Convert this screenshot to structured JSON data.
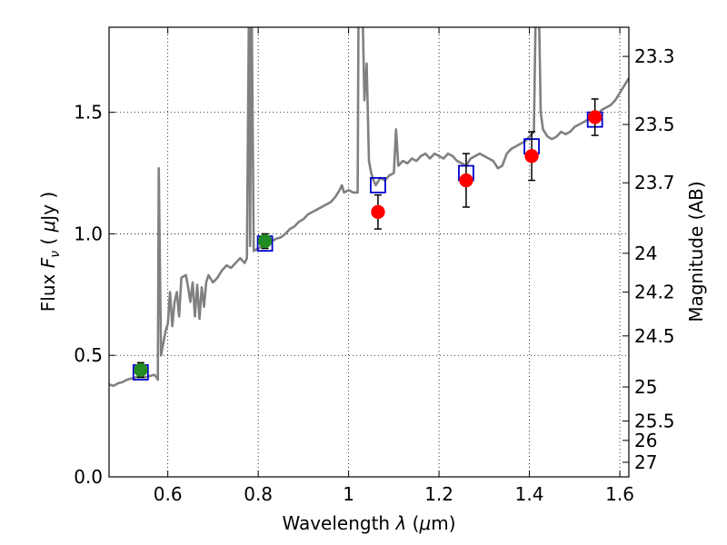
{
  "chart_data": {
    "type": "scatter",
    "title": "",
    "xlabel": "Wavelength  λ (μm)",
    "ylabel": "Flux  F_ν  ( μJy )",
    "y2label": "Magnitude (AB)",
    "xlim": [
      0.47,
      1.62
    ],
    "ylim": [
      0.0,
      1.85
    ],
    "grid": true,
    "grid_style": "dotted",
    "x_ticks": [
      {
        "value": 0.6,
        "label": "0.6"
      },
      {
        "value": 0.8,
        "label": "0.8"
      },
      {
        "value": 1.0,
        "label": "1"
      },
      {
        "value": 1.2,
        "label": "1.2"
      },
      {
        "value": 1.4,
        "label": "1.4"
      },
      {
        "value": 1.6,
        "label": "1.6"
      }
    ],
    "y_ticks": [
      {
        "value": 0.0,
        "label": "0.0"
      },
      {
        "value": 0.5,
        "label": "0.5"
      },
      {
        "value": 1.0,
        "label": "1.0"
      },
      {
        "value": 1.5,
        "label": "1.5"
      }
    ],
    "y2_ticks": [
      {
        "label": "23.3",
        "flux": 1.73
      },
      {
        "label": "23.5",
        "flux": 1.45
      },
      {
        "label": "23.7",
        "flux": 1.21
      },
      {
        "label": "24",
        "flux": 0.92
      },
      {
        "label": "24.2",
        "flux": 0.76
      },
      {
        "label": "24.5",
        "flux": 0.58
      },
      {
        "label": "25",
        "flux": 0.37
      },
      {
        "label": "25.5",
        "flux": 0.23
      },
      {
        "label": "26",
        "flux": 0.15
      },
      {
        "label": "27",
        "flux": 0.06
      }
    ],
    "series": [
      {
        "kind": "spectrum",
        "color": "#808080",
        "points": [
          [
            0.47,
            0.38
          ],
          [
            0.48,
            0.375
          ],
          [
            0.49,
            0.385
          ],
          [
            0.5,
            0.39
          ],
          [
            0.51,
            0.4
          ],
          [
            0.52,
            0.405
          ],
          [
            0.53,
            0.41
          ],
          [
            0.54,
            0.41
          ],
          [
            0.55,
            0.41
          ],
          [
            0.56,
            0.415
          ],
          [
            0.57,
            0.42
          ],
          [
            0.575,
            0.41
          ],
          [
            0.578,
            0.4
          ],
          [
            0.58,
            1.27
          ],
          [
            0.585,
            0.5
          ],
          [
            0.59,
            0.55
          ],
          [
            0.595,
            0.6
          ],
          [
            0.6,
            0.63
          ],
          [
            0.605,
            0.76
          ],
          [
            0.61,
            0.62
          ],
          [
            0.615,
            0.72
          ],
          [
            0.62,
            0.76
          ],
          [
            0.625,
            0.66
          ],
          [
            0.63,
            0.82
          ],
          [
            0.64,
            0.83
          ],
          [
            0.645,
            0.78
          ],
          [
            0.65,
            0.72
          ],
          [
            0.655,
            0.8
          ],
          [
            0.66,
            0.66
          ],
          [
            0.665,
            0.79
          ],
          [
            0.67,
            0.65
          ],
          [
            0.675,
            0.78
          ],
          [
            0.68,
            0.7
          ],
          [
            0.685,
            0.8
          ],
          [
            0.69,
            0.83
          ],
          [
            0.7,
            0.8
          ],
          [
            0.705,
            0.81
          ],
          [
            0.71,
            0.82
          ],
          [
            0.72,
            0.85
          ],
          [
            0.73,
            0.87
          ],
          [
            0.74,
            0.86
          ],
          [
            0.75,
            0.88
          ],
          [
            0.76,
            0.9
          ],
          [
            0.77,
            0.88
          ],
          [
            0.775,
            0.9
          ],
          [
            0.78,
            2.05
          ],
          [
            0.782,
            0.95
          ],
          [
            0.785,
            2.05
          ],
          [
            0.79,
            0.93
          ],
          [
            0.8,
            0.94
          ],
          [
            0.81,
            0.95
          ],
          [
            0.82,
            0.96
          ],
          [
            0.83,
            0.97
          ],
          [
            0.84,
            0.98
          ],
          [
            0.85,
            0.985
          ],
          [
            0.86,
            1.0
          ],
          [
            0.87,
            1.02
          ],
          [
            0.88,
            1.03
          ],
          [
            0.89,
            1.05
          ],
          [
            0.9,
            1.06
          ],
          [
            0.91,
            1.08
          ],
          [
            0.92,
            1.09
          ],
          [
            0.93,
            1.1
          ],
          [
            0.94,
            1.11
          ],
          [
            0.95,
            1.12
          ],
          [
            0.96,
            1.13
          ],
          [
            0.97,
            1.15
          ],
          [
            0.98,
            1.18
          ],
          [
            0.985,
            1.2
          ],
          [
            0.99,
            1.17
          ],
          [
            1.0,
            1.18
          ],
          [
            1.01,
            1.17
          ],
          [
            1.02,
            1.17
          ],
          [
            1.022,
            2.0
          ],
          [
            1.03,
            2.0
          ],
          [
            1.035,
            1.55
          ],
          [
            1.04,
            1.7
          ],
          [
            1.045,
            1.3
          ],
          [
            1.05,
            1.25
          ],
          [
            1.055,
            1.22
          ],
          [
            1.06,
            1.2
          ],
          [
            1.07,
            1.23
          ],
          [
            1.08,
            1.22
          ],
          [
            1.09,
            1.24
          ],
          [
            1.1,
            1.25
          ],
          [
            1.105,
            1.43
          ],
          [
            1.11,
            1.28
          ],
          [
            1.12,
            1.3
          ],
          [
            1.13,
            1.29
          ],
          [
            1.14,
            1.31
          ],
          [
            1.15,
            1.3
          ],
          [
            1.16,
            1.32
          ],
          [
            1.17,
            1.33
          ],
          [
            1.18,
            1.31
          ],
          [
            1.19,
            1.33
          ],
          [
            1.2,
            1.32
          ],
          [
            1.21,
            1.31
          ],
          [
            1.22,
            1.33
          ],
          [
            1.23,
            1.32
          ],
          [
            1.24,
            1.3
          ],
          [
            1.25,
            1.29
          ],
          [
            1.26,
            1.28
          ],
          [
            1.27,
            1.31
          ],
          [
            1.28,
            1.32
          ],
          [
            1.29,
            1.33
          ],
          [
            1.3,
            1.32
          ],
          [
            1.31,
            1.31
          ],
          [
            1.32,
            1.3
          ],
          [
            1.33,
            1.27
          ],
          [
            1.34,
            1.28
          ],
          [
            1.35,
            1.33
          ],
          [
            1.36,
            1.35
          ],
          [
            1.37,
            1.36
          ],
          [
            1.38,
            1.37
          ],
          [
            1.39,
            1.38
          ],
          [
            1.4,
            1.4
          ],
          [
            1.41,
            1.42
          ],
          [
            1.415,
            2.05
          ],
          [
            1.42,
            2.05
          ],
          [
            1.425,
            1.5
          ],
          [
            1.43,
            1.43
          ],
          [
            1.44,
            1.4
          ],
          [
            1.45,
            1.39
          ],
          [
            1.46,
            1.4
          ],
          [
            1.47,
            1.42
          ],
          [
            1.48,
            1.41
          ],
          [
            1.49,
            1.42
          ],
          [
            1.5,
            1.44
          ],
          [
            1.51,
            1.45
          ],
          [
            1.52,
            1.46
          ],
          [
            1.53,
            1.47
          ],
          [
            1.54,
            1.48
          ],
          [
            1.55,
            1.49
          ],
          [
            1.56,
            1.51
          ],
          [
            1.57,
            1.52
          ],
          [
            1.58,
            1.53
          ],
          [
            1.59,
            1.55
          ],
          [
            1.6,
            1.58
          ],
          [
            1.61,
            1.61
          ],
          [
            1.62,
            1.64
          ]
        ]
      },
      {
        "kind": "model_boxes",
        "color": "#0000cc",
        "points": [
          [
            0.54,
            0.43
          ],
          [
            0.815,
            0.96
          ],
          [
            1.065,
            1.2
          ],
          [
            1.26,
            1.25
          ],
          [
            1.405,
            1.36
          ],
          [
            1.545,
            1.47
          ]
        ]
      },
      {
        "kind": "photometry",
        "color": "#228b22",
        "points": [
          {
            "x": 0.54,
            "y": 0.44,
            "err": 0.03
          },
          {
            "x": 0.815,
            "y": 0.97,
            "err": 0.03
          }
        ]
      },
      {
        "kind": "photometry",
        "color": "#ff0000",
        "points": [
          {
            "x": 1.065,
            "y": 1.09,
            "err": 0.07
          },
          {
            "x": 1.26,
            "y": 1.22,
            "err": 0.11
          },
          {
            "x": 1.405,
            "y": 1.32,
            "err": 0.1
          },
          {
            "x": 1.545,
            "y": 1.48,
            "err": 0.075
          }
        ]
      }
    ]
  }
}
